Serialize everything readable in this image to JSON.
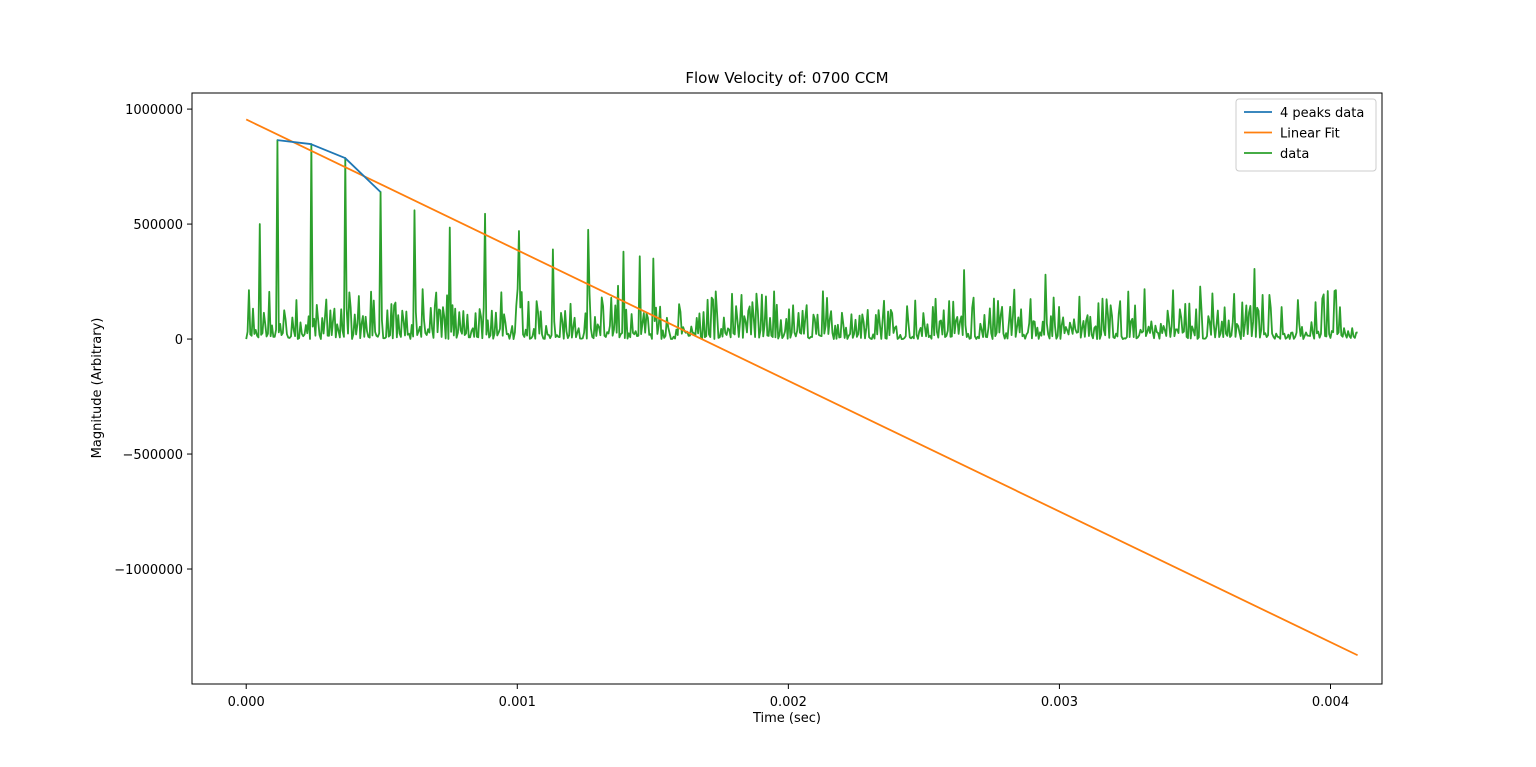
{
  "chart_data": {
    "type": "line",
    "title": "Flow Velocity of: 0700 CCM",
    "xlabel": "Time (sec)",
    "ylabel": "Magnitude (Arbitrary)",
    "xlim": [
      -0.0002,
      0.00419
    ],
    "ylim": [
      -1500000,
      1070000
    ],
    "xticks": [
      0.0,
      0.001,
      0.002,
      0.003,
      0.004
    ],
    "xtick_labels": [
      "0.000",
      "0.001",
      "0.002",
      "0.003",
      "0.004"
    ],
    "yticks": [
      1000000,
      500000,
      0,
      -500000,
      -1000000
    ],
    "ytick_labels": [
      "1000000",
      "500000",
      "0",
      "−500000",
      "−1000000"
    ],
    "grid": false,
    "legend_position": "top-right",
    "series": [
      {
        "name": "4 peaks data",
        "color": "#1f77b4",
        "x": [
          0.000115,
          0.000238,
          0.000365,
          0.000495
        ],
        "y": [
          865000,
          848000,
          787000,
          640000
        ]
      },
      {
        "name": "Linear Fit",
        "color": "#ff7f0e",
        "x": [
          0.0,
          0.0041
        ],
        "y": [
          955000,
          -1375000
        ]
      },
      {
        "name": "data",
        "color": "#2ca02c",
        "x_start": 0.0,
        "x_end": 0.0041,
        "peaks": [
          {
            "x": 5e-05,
            "y": 500000
          },
          {
            "x": 0.000115,
            "y": 865000
          },
          {
            "x": 0.000238,
            "y": 848000
          },
          {
            "x": 0.000365,
            "y": 787000
          },
          {
            "x": 0.000495,
            "y": 640000
          },
          {
            "x": 0.00062,
            "y": 560000
          },
          {
            "x": 0.00075,
            "y": 485000
          },
          {
            "x": 0.00088,
            "y": 545000
          },
          {
            "x": 0.001005,
            "y": 470000
          },
          {
            "x": 0.00113,
            "y": 390000
          },
          {
            "x": 0.00126,
            "y": 475000
          },
          {
            "x": 0.00139,
            "y": 380000
          },
          {
            "x": 0.00145,
            "y": 360000
          },
          {
            "x": 0.0015,
            "y": 350000
          },
          {
            "x": 0.00265,
            "y": 300000
          },
          {
            "x": 0.00295,
            "y": 280000
          },
          {
            "x": 0.00372,
            "y": 305000
          }
        ],
        "noise_level_max": 250000
      }
    ]
  }
}
